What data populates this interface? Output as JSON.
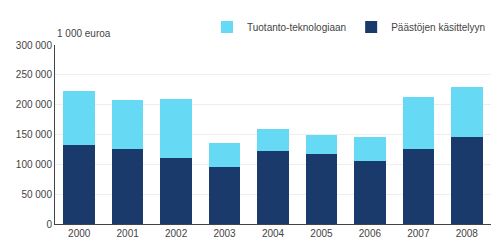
{
  "chart_data": {
    "type": "bar",
    "stacked": true,
    "categories": [
      "2000",
      "2001",
      "2002",
      "2003",
      "2004",
      "2005",
      "2006",
      "2007",
      "2008"
    ],
    "series": [
      {
        "name": "Päästöjen käsittelyyn",
        "color": "#1a3a6b",
        "values": [
          133000,
          126000,
          111000,
          96000,
          122000,
          118000,
          106000,
          126000,
          145000
        ]
      },
      {
        "name": "Tuotanto-teknologiaan",
        "color": "#66d9f5",
        "values": [
          90000,
          82000,
          99000,
          39000,
          37000,
          31000,
          39000,
          87000,
          85000
        ]
      }
    ],
    "ylabel": "1 000 euroa",
    "ylim": [
      0,
      300000
    ],
    "yticks": [
      0,
      {
        "value": 50000,
        "label": "50 000"
      },
      {
        "value": 100000,
        "label": "100 000"
      },
      {
        "value": 150000,
        "label": "150 000"
      },
      {
        "value": 200000,
        "label": "200 000"
      },
      {
        "value": 250000,
        "label": "250 000"
      },
      {
        "value": 300000,
        "label": "300 000"
      }
    ],
    "grid": true,
    "legend": "upper right"
  }
}
